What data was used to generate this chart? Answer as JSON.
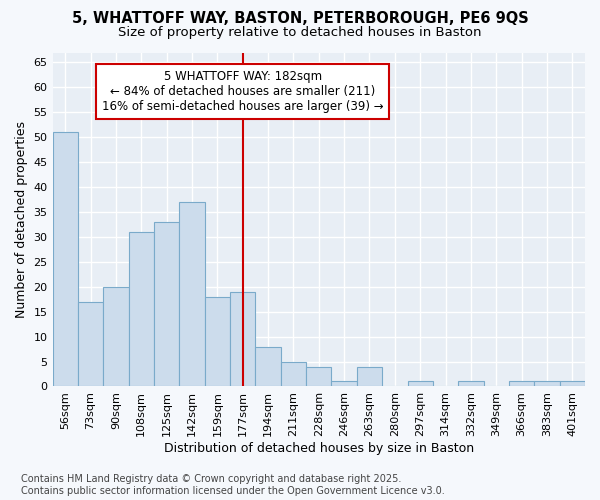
{
  "title_line1": "5, WHATTOFF WAY, BASTON, PETERBOROUGH, PE6 9QS",
  "title_line2": "Size of property relative to detached houses in Baston",
  "xlabel": "Distribution of detached houses by size in Baston",
  "ylabel": "Number of detached properties",
  "categories": [
    "56sqm",
    "73sqm",
    "90sqm",
    "108sqm",
    "125sqm",
    "142sqm",
    "159sqm",
    "177sqm",
    "194sqm",
    "211sqm",
    "228sqm",
    "246sqm",
    "263sqm",
    "280sqm",
    "297sqm",
    "314sqm",
    "332sqm",
    "349sqm",
    "366sqm",
    "383sqm",
    "401sqm"
  ],
  "values": [
    51,
    17,
    20,
    31,
    33,
    37,
    18,
    19,
    8,
    5,
    4,
    1,
    4,
    0,
    1,
    0,
    1,
    0,
    1,
    1,
    1
  ],
  "bar_color": "#ccdcec",
  "bar_edge_color": "#7aaaca",
  "vline_x_index": 7,
  "vline_color": "#cc0000",
  "annotation_text": "5 WHATTOFF WAY: 182sqm\n← 84% of detached houses are smaller (211)\n16% of semi-detached houses are larger (39) →",
  "annotation_box_color": "#ffffff",
  "annotation_box_edge": "#cc0000",
  "ylim": [
    0,
    67
  ],
  "yticks": [
    0,
    5,
    10,
    15,
    20,
    25,
    30,
    35,
    40,
    45,
    50,
    55,
    60,
    65
  ],
  "footer_line1": "Contains HM Land Registry data © Crown copyright and database right 2025.",
  "footer_line2": "Contains public sector information licensed under the Open Government Licence v3.0.",
  "bg_color": "#f5f8fc",
  "plot_bg_color": "#e8eef5",
  "grid_color": "#ffffff",
  "title_fontsize": 10.5,
  "subtitle_fontsize": 9.5,
  "axis_label_fontsize": 9,
  "tick_fontsize": 8,
  "footer_fontsize": 7,
  "ann_fontsize": 8.5
}
